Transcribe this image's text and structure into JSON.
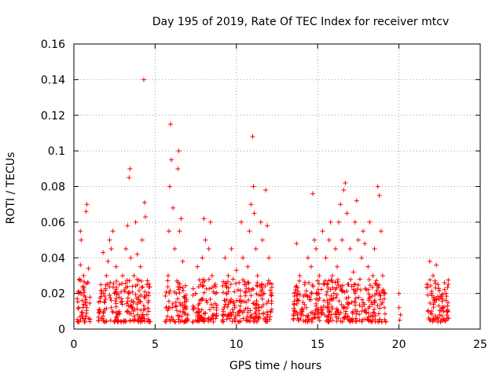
{
  "chart_data": {
    "type": "scatter",
    "title": "Day 195 of 2019, Rate Of TEC Index for receiver mtcv",
    "xlabel": "GPS time / hours",
    "ylabel": "ROTI / TECUs",
    "xlim": [
      0,
      25
    ],
    "ylim": [
      0,
      0.16
    ],
    "x_ticks": [
      0,
      5,
      10,
      15,
      20,
      25
    ],
    "x_tick_labels": [
      "0",
      "5",
      "10",
      "15",
      "20",
      "25"
    ],
    "y_ticks": [
      0,
      0.02,
      0.04,
      0.06,
      0.08,
      0.1,
      0.12,
      0.14,
      0.16
    ],
    "y_tick_labels": [
      "0",
      "0.02",
      "0.04",
      "0.06",
      "0.08",
      "0.1",
      "0.12",
      "0.14",
      "0.16"
    ],
    "grid": true,
    "marker": "+",
    "marker_color": "#ff0000",
    "series": [
      {
        "points": [
          [
            0.3,
            0.012
          ],
          [
            0.3,
            0.02
          ],
          [
            0.35,
            0.028
          ],
          [
            0.4,
            0.036
          ],
          [
            0.4,
            0.055
          ],
          [
            0.45,
            0.05
          ],
          [
            0.5,
            0.008
          ],
          [
            0.5,
            0.016
          ],
          [
            0.55,
            0.024
          ],
          [
            0.6,
            0.03
          ],
          [
            0.65,
            0.005
          ],
          [
            0.7,
            0.018
          ],
          [
            0.75,
            0.066
          ],
          [
            0.8,
            0.07
          ],
          [
            0.8,
            0.012
          ],
          [
            0.85,
            0.026
          ],
          [
            0.9,
            0.034
          ],
          [
            1.6,
            0.01
          ],
          [
            1.7,
            0.02
          ],
          [
            1.8,
            0.043
          ],
          [
            1.9,
            0.015
          ],
          [
            2.0,
            0.03
          ],
          [
            2.1,
            0.038
          ],
          [
            2.2,
            0.05
          ],
          [
            2.3,
            0.045
          ],
          [
            2.3,
            0.012
          ],
          [
            2.4,
            0.055
          ],
          [
            2.5,
            0.02
          ],
          [
            2.6,
            0.035
          ],
          [
            2.7,
            0.008
          ],
          [
            2.8,
            0.025
          ],
          [
            2.9,
            0.015
          ],
          [
            3.0,
            0.03
          ],
          [
            3.1,
            0.022
          ],
          [
            3.2,
            0.045
          ],
          [
            3.3,
            0.058
          ],
          [
            3.4,
            0.085
          ],
          [
            3.45,
            0.09
          ],
          [
            3.5,
            0.04
          ],
          [
            3.6,
            0.012
          ],
          [
            3.7,
            0.03
          ],
          [
            3.8,
            0.06
          ],
          [
            3.9,
            0.042
          ],
          [
            4.0,
            0.018
          ],
          [
            4.1,
            0.035
          ],
          [
            4.2,
            0.05
          ],
          [
            4.3,
            0.14
          ],
          [
            4.35,
            0.071
          ],
          [
            4.4,
            0.063
          ],
          [
            4.5,
            0.025
          ],
          [
            4.6,
            0.01
          ],
          [
            5.7,
            0.012
          ],
          [
            5.8,
            0.03
          ],
          [
            5.85,
            0.055
          ],
          [
            5.9,
            0.08
          ],
          [
            5.95,
            0.115
          ],
          [
            6.0,
            0.095
          ],
          [
            6.1,
            0.068
          ],
          [
            6.2,
            0.045
          ],
          [
            6.3,
            0.02
          ],
          [
            6.4,
            0.09
          ],
          [
            6.45,
            0.1
          ],
          [
            6.5,
            0.055
          ],
          [
            6.6,
            0.062
          ],
          [
            6.7,
            0.038
          ],
          [
            6.8,
            0.015
          ],
          [
            7.0,
            0.008
          ],
          [
            7.4,
            0.012
          ],
          [
            7.5,
            0.02
          ],
          [
            7.6,
            0.035
          ],
          [
            7.7,
            0.01
          ],
          [
            7.8,
            0.025
          ],
          [
            7.9,
            0.04
          ],
          [
            8.0,
            0.062
          ],
          [
            8.1,
            0.05
          ],
          [
            8.2,
            0.015
          ],
          [
            8.3,
            0.045
          ],
          [
            8.4,
            0.06
          ],
          [
            8.5,
            0.03
          ],
          [
            8.6,
            0.008
          ],
          [
            8.7,
            0.02
          ],
          [
            9.2,
            0.01
          ],
          [
            9.3,
            0.04
          ],
          [
            9.4,
            0.02
          ],
          [
            9.5,
            0.03
          ],
          [
            9.6,
            0.015
          ],
          [
            9.7,
            0.045
          ],
          [
            9.8,
            0.028
          ],
          [
            9.9,
            0.012
          ],
          [
            10.0,
            0.033
          ],
          [
            10.1,
            0.022
          ],
          [
            10.2,
            0.01
          ],
          [
            10.3,
            0.06
          ],
          [
            10.4,
            0.04
          ],
          [
            10.5,
            0.025
          ],
          [
            10.6,
            0.015
          ],
          [
            10.7,
            0.035
          ],
          [
            10.8,
            0.055
          ],
          [
            10.9,
            0.07
          ],
          [
            11.0,
            0.108
          ],
          [
            11.05,
            0.08
          ],
          [
            11.1,
            0.065
          ],
          [
            11.2,
            0.045
          ],
          [
            11.3,
            0.03
          ],
          [
            11.4,
            0.012
          ],
          [
            11.5,
            0.06
          ],
          [
            11.6,
            0.05
          ],
          [
            11.7,
            0.02
          ],
          [
            11.8,
            0.078
          ],
          [
            11.9,
            0.058
          ],
          [
            12.0,
            0.04
          ],
          [
            12.1,
            0.01
          ],
          [
            13.6,
            0.01
          ],
          [
            13.7,
            0.048
          ],
          [
            13.8,
            0.02
          ],
          [
            13.9,
            0.03
          ],
          [
            14.0,
            0.008
          ],
          [
            14.1,
            0.015
          ],
          [
            14.2,
            0.025
          ],
          [
            14.3,
            0.012
          ],
          [
            14.4,
            0.04
          ],
          [
            14.5,
            0.018
          ],
          [
            14.6,
            0.035
          ],
          [
            14.7,
            0.076
          ],
          [
            14.8,
            0.05
          ],
          [
            14.9,
            0.045
          ],
          [
            15.0,
            0.02
          ],
          [
            15.1,
            0.03
          ],
          [
            15.2,
            0.012
          ],
          [
            15.3,
            0.055
          ],
          [
            15.4,
            0.025
          ],
          [
            15.5,
            0.04
          ],
          [
            15.6,
            0.015
          ],
          [
            15.7,
            0.05
          ],
          [
            15.8,
            0.06
          ],
          [
            15.9,
            0.03
          ],
          [
            16.0,
            0.02
          ],
          [
            16.1,
            0.045
          ],
          [
            16.2,
            0.035
          ],
          [
            16.3,
            0.06
          ],
          [
            16.4,
            0.07
          ],
          [
            16.5,
            0.05
          ],
          [
            16.6,
            0.078
          ],
          [
            16.7,
            0.082
          ],
          [
            16.8,
            0.065
          ],
          [
            16.9,
            0.025
          ],
          [
            17.0,
            0.045
          ],
          [
            17.1,
            0.015
          ],
          [
            17.2,
            0.032
          ],
          [
            17.3,
            0.06
          ],
          [
            17.4,
            0.072
          ],
          [
            17.5,
            0.05
          ],
          [
            17.6,
            0.028
          ],
          [
            17.7,
            0.04
          ],
          [
            17.8,
            0.055
          ],
          [
            17.9,
            0.048
          ],
          [
            18.0,
            0.022
          ],
          [
            18.1,
            0.035
          ],
          [
            18.2,
            0.06
          ],
          [
            18.3,
            0.015
          ],
          [
            18.4,
            0.03
          ],
          [
            18.5,
            0.045
          ],
          [
            18.6,
            0.025
          ],
          [
            18.7,
            0.08
          ],
          [
            18.8,
            0.075
          ],
          [
            18.9,
            0.055
          ],
          [
            19.0,
            0.03
          ],
          [
            19.1,
            0.012
          ],
          [
            20.0,
            0.02
          ],
          [
            20.0,
            0.012
          ],
          [
            20.05,
            0.005
          ],
          [
            20.1,
            0.008
          ],
          [
            21.8,
            0.01
          ],
          [
            21.9,
            0.038
          ],
          [
            22.0,
            0.02
          ],
          [
            22.1,
            0.03
          ],
          [
            22.2,
            0.015
          ],
          [
            22.3,
            0.036
          ],
          [
            22.4,
            0.025
          ],
          [
            22.5,
            0.008
          ],
          [
            22.6,
            0.018
          ],
          [
            22.7,
            0.012
          ],
          [
            22.8,
            0.026
          ],
          [
            22.9,
            0.02
          ],
          [
            23.0,
            0.01
          ]
        ]
      }
    ]
  }
}
